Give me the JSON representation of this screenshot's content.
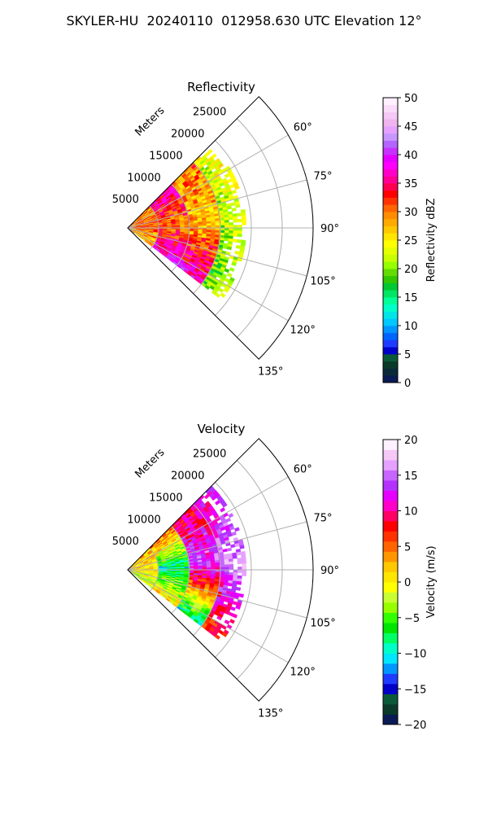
{
  "page": {
    "title": "SKYLER-HU  20240110  012958.630 UTC Elevation 12°"
  },
  "chart_data": [
    {
      "type": "heatmap",
      "projection": "polar-sector",
      "title": "Reflectivity",
      "range_label": "Meters",
      "range_ticks": [
        5000,
        10000,
        15000,
        20000,
        25000
      ],
      "range_tick_labels": [
        "5000",
        "10000",
        "15000",
        "20000",
        "25000"
      ],
      "range_limit": [
        0,
        30000
      ],
      "azimuth_ticks": [
        60,
        75,
        90,
        105,
        120,
        135
      ],
      "azimuth_tick_labels": [
        "60°",
        "75°",
        "90°",
        "105°",
        "120°",
        "135°"
      ],
      "azimuth_range": [
        45,
        135
      ],
      "grid": true,
      "colorbar": {
        "label": "Reflectivity dBZ",
        "min": 0,
        "max": 50,
        "ticks": [
          0,
          5,
          10,
          15,
          20,
          25,
          30,
          35,
          40,
          45,
          50
        ],
        "tick_labels": [
          "0",
          "5",
          "10",
          "15",
          "20",
          "25",
          "30",
          "35",
          "40",
          "45",
          "50"
        ],
        "colors": [
          "#0a1a55",
          "#0a2a3a",
          "#0a3a2a",
          "#0a5a3a",
          "#0000c8",
          "#1e3cff",
          "#0064ff",
          "#0096ff",
          "#00c8ff",
          "#00e6e6",
          "#00ffc8",
          "#00ff96",
          "#00e664",
          "#00c832",
          "#32c800",
          "#64dc00",
          "#96ff00",
          "#c8ff00",
          "#e6ff00",
          "#ffff00",
          "#ffe600",
          "#ffc800",
          "#ffaa00",
          "#ff8c00",
          "#ff6400",
          "#ff3200",
          "#ff0000",
          "#ff0050",
          "#ff0096",
          "#ff00c8",
          "#ff00ff",
          "#e600ff",
          "#c832ff",
          "#b464ff",
          "#c896ff",
          "#e6a0ff",
          "#f0b4f0",
          "#f5c8f5",
          "#fadcfa",
          "#fff0ff"
        ]
      },
      "field": {
        "azimuth_span": [
          45,
          127
        ],
        "bands": [
          {
            "r": [
              0,
              5000
            ],
            "values": [
              29,
              31,
              27
            ]
          },
          {
            "r": [
              5000,
              10000
            ],
            "values": [
              36,
              30,
              39
            ]
          },
          {
            "r": [
              10000,
              15000
            ],
            "values": [
              30,
              27,
              38
            ]
          },
          {
            "r": [
              15000,
              19000
            ],
            "values": [
              23,
              21,
              19
            ]
          }
        ]
      }
    },
    {
      "type": "heatmap",
      "projection": "polar-sector",
      "title": "Velocity",
      "range_label": "Meters",
      "range_ticks": [
        5000,
        10000,
        15000,
        20000,
        25000
      ],
      "range_tick_labels": [
        "5000",
        "10000",
        "15000",
        "20000",
        "25000"
      ],
      "range_limit": [
        0,
        30000
      ],
      "azimuth_ticks": [
        60,
        75,
        90,
        105,
        120,
        135
      ],
      "azimuth_tick_labels": [
        "60°",
        "75°",
        "90°",
        "105°",
        "120°",
        "135°"
      ],
      "azimuth_range": [
        45,
        135
      ],
      "grid": true,
      "colorbar": {
        "label": "Velocity (m/s)",
        "min": -20,
        "max": 20,
        "ticks": [
          -20,
          -15,
          -10,
          -5,
          0,
          5,
          10,
          15,
          20
        ],
        "tick_labels": [
          "−20",
          "−15",
          "−10",
          "−5",
          "0",
          "5",
          "10",
          "15",
          "20"
        ],
        "colors": [
          "#0a1a55",
          "#0a3a2a",
          "#0a5a3a",
          "#0000c8",
          "#1e3cff",
          "#0096ff",
          "#00e6ff",
          "#00ffc8",
          "#00ff64",
          "#00e600",
          "#32ff00",
          "#96ff00",
          "#c8ff32",
          "#ffff00",
          "#ffe600",
          "#ffc800",
          "#ff9600",
          "#ff6400",
          "#ff3200",
          "#ff0000",
          "#ff0064",
          "#ff00c8",
          "#e600ff",
          "#b432ff",
          "#c864ff",
          "#e6a0ff",
          "#f5c8f5",
          "#fff0ff"
        ]
      },
      "field": {
        "azimuth_span": [
          45,
          127
        ],
        "bands": [
          {
            "r": [
              0,
              5000
            ],
            "values": [
              2,
              1,
              -3
            ]
          },
          {
            "r": [
              5000,
              10000
            ],
            "values": [
              5,
              -9,
              1
            ]
          },
          {
            "r": [
              10000,
              15000
            ],
            "values": [
              9,
              14,
              -9
            ]
          },
          {
            "r": [
              15000,
              19000
            ],
            "values": [
              11,
              15,
              6
            ]
          }
        ]
      }
    }
  ]
}
